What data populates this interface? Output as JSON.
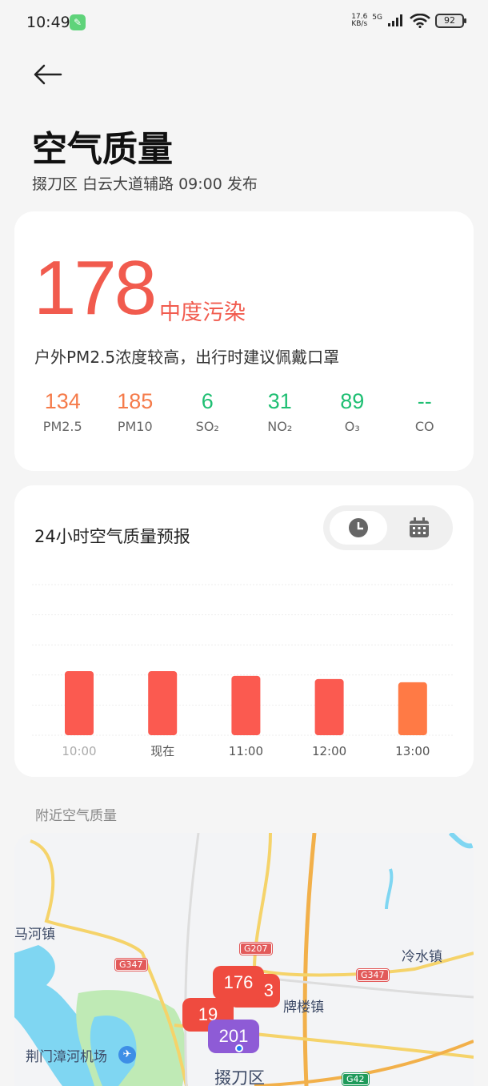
{
  "status_bar": {
    "time": "10:49",
    "net_speed_value": "17.6",
    "net_speed_unit": "KB/s",
    "network": "5G",
    "battery": "92"
  },
  "header": {
    "title": "空气质量",
    "subtitle": "掇刀区 白云大道辅路 09:00 发布"
  },
  "summary": {
    "aqi": "178",
    "level": "中度污染",
    "level_color": "#f15b4e",
    "advice": "户外PM2.5浓度较高，出行时建议佩戴口罩",
    "pollutants": [
      {
        "value": "134",
        "name": "PM2.5",
        "color": "#f57b4a"
      },
      {
        "value": "185",
        "name": "PM10",
        "color": "#f57b4a"
      },
      {
        "value": "6",
        "name": "SO₂",
        "color": "#1fbf73"
      },
      {
        "value": "31",
        "name": "NO₂",
        "color": "#1fbf73"
      },
      {
        "value": "89",
        "name": "O₃",
        "color": "#1fbf73"
      },
      {
        "value": "--",
        "name": "CO",
        "color": "#1fbf73"
      }
    ]
  },
  "forecast": {
    "title": "24小时空气质量预报",
    "toggle": [
      "clock-icon",
      "calendar-icon"
    ],
    "chart_data": {
      "type": "bar",
      "categories": [
        "10:00",
        "现在",
        "11:00",
        "12:00",
        "13:00"
      ],
      "values": [
        178,
        178,
        165,
        156,
        147
      ],
      "colors": [
        "#fb5a50",
        "#fb5a50",
        "#fb5a50",
        "#fb5a50",
        "#ff7a45"
      ],
      "grid": true
    }
  },
  "nearby": {
    "title": "附近空气质量",
    "places": [
      "马河镇",
      "冷水镇",
      "牌楼镇",
      "荆门漳河机场",
      "掇刀区"
    ],
    "roads": [
      "G347",
      "G207",
      "G347",
      "G42"
    ],
    "stations": [
      {
        "value": "19",
        "color": "#ef4b3f"
      },
      {
        "value": "3",
        "color": "#ef4b3f"
      },
      {
        "value": "176",
        "color": "#ef4b3f"
      },
      {
        "value": "201",
        "color": "#8e5bd6"
      }
    ]
  }
}
